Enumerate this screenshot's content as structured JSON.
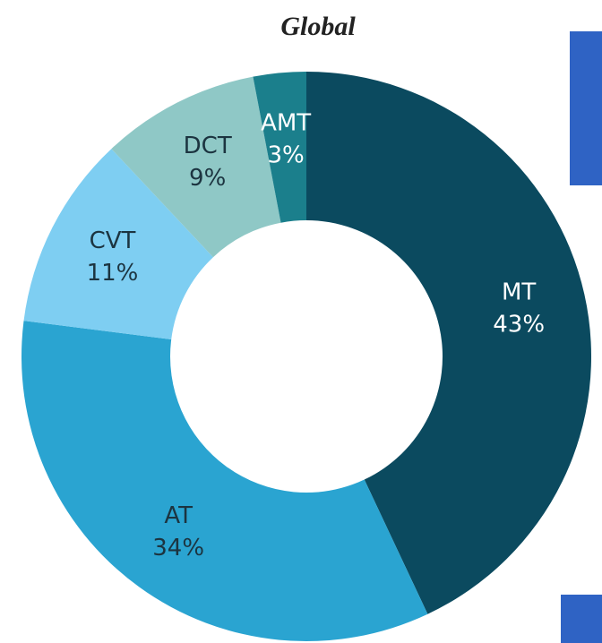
{
  "chart_data": {
    "type": "donut",
    "title": "Global",
    "categories": [
      "MT",
      "AT",
      "CVT",
      "DCT",
      "AMT"
    ],
    "values": [
      43,
      34,
      11,
      9,
      3
    ],
    "value_labels": [
      "43%",
      "34%",
      "11%",
      "9%",
      "3%"
    ],
    "colors": [
      "#0b4a5f",
      "#2aa4d1",
      "#7ecef2",
      "#8fc8c6",
      "#1b7f8c"
    ]
  }
}
